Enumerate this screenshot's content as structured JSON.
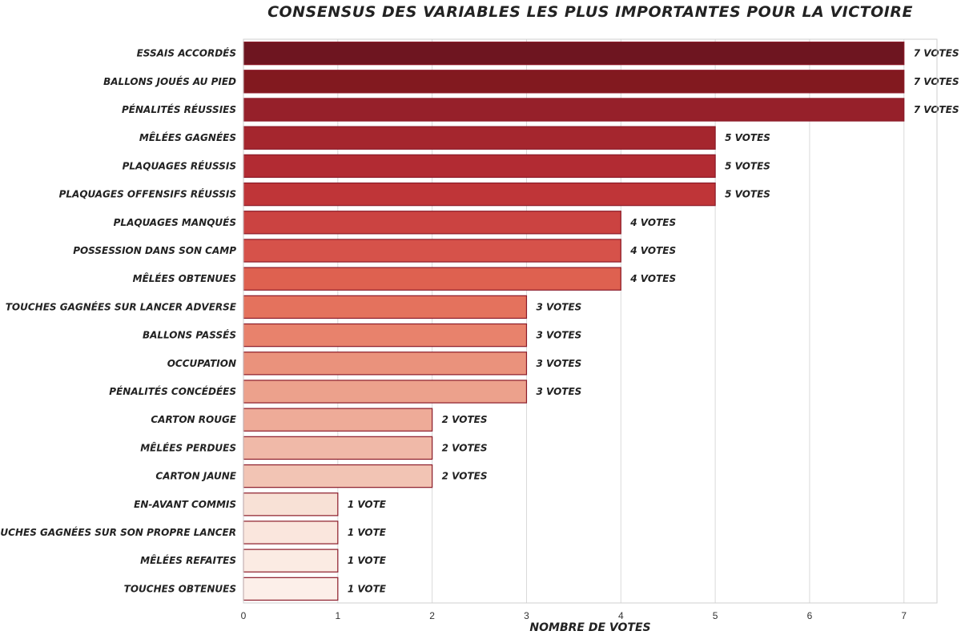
{
  "chart_data": {
    "type": "bar",
    "orientation": "horizontal",
    "title": "Consensus des variables les plus importantes pour la victoire",
    "xlabel": "Nombre de votes",
    "ylabel": "",
    "xlim": [
      0,
      7.35
    ],
    "xticks": [
      0,
      1,
      2,
      3,
      4,
      5,
      6,
      7
    ],
    "grid": "vertical",
    "categories": [
      "Essais accordés",
      "Ballons joués au pied",
      "Pénalités réussies",
      "Mêlées gagnées",
      "Plaquages réussis",
      "Plaquages offensifs réussis",
      "Plaquages manqués",
      "Possession dans son camp",
      "Mêlées obtenues",
      "Touches gagnées sur lancer adverse",
      "Ballons passés",
      "Occupation",
      "Pénalités concédées",
      "Carton rouge",
      "Mêlées perdues",
      "Carton jaune",
      "En-avant commis",
      "Touches gagnées sur son propre lancer",
      "Mêlées refaites",
      "Touches obtenues"
    ],
    "values": [
      7,
      7,
      7,
      5,
      5,
      5,
      4,
      4,
      4,
      3,
      3,
      3,
      3,
      2,
      2,
      2,
      1,
      1,
      1,
      1
    ],
    "data_labels": [
      "7 votes",
      "7 votes",
      "7 votes",
      "5 votes",
      "5 votes",
      "5 votes",
      "4 votes",
      "4 votes",
      "4 votes",
      "3 votes",
      "3 votes",
      "3 votes",
      "3 votes",
      "2 votes",
      "2 votes",
      "2 votes",
      "1 vote",
      "1 vote",
      "1 vote",
      "1 vote"
    ],
    "colors": [
      "#6e1520",
      "#82191f",
      "#96202a",
      "#a5262e",
      "#b22b33",
      "#bf3538",
      "#cb4341",
      "#d6524a",
      "#de6150",
      "#e4725d",
      "#e8826c",
      "#ea927c",
      "#eca18c",
      "#eeab98",
      "#f0b9a8",
      "#f2c4b4",
      "#f8e1d6",
      "#fae6dd",
      "#fbebe3",
      "#fcefe9"
    ],
    "bar_edge_color": "#8b1a28"
  }
}
